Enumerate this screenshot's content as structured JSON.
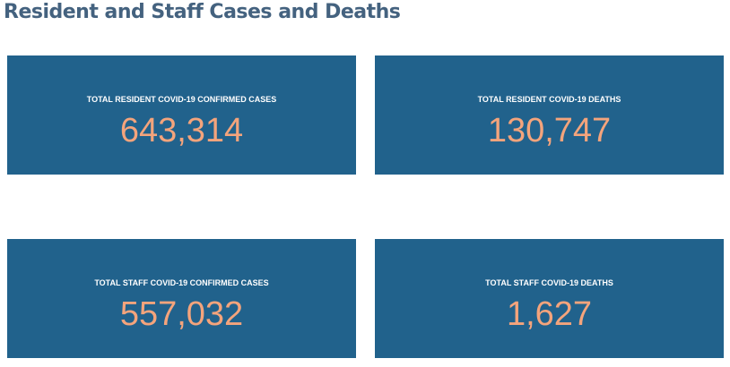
{
  "header": {
    "title": "Resident and Staff Cases and Deaths"
  },
  "cards": [
    {
      "label": "TOTAL RESIDENT COVID-19 CONFIRMED CASES",
      "value": "643,314"
    },
    {
      "label": "TOTAL RESIDENT COVID-19 DEATHS",
      "value": "130,747"
    },
    {
      "label": "TOTAL STAFF COVID-19 CONFIRMED CASES",
      "value": "557,032"
    },
    {
      "label": "TOTAL STAFF COVID-19 DEATHS",
      "value": "1,627"
    }
  ]
}
